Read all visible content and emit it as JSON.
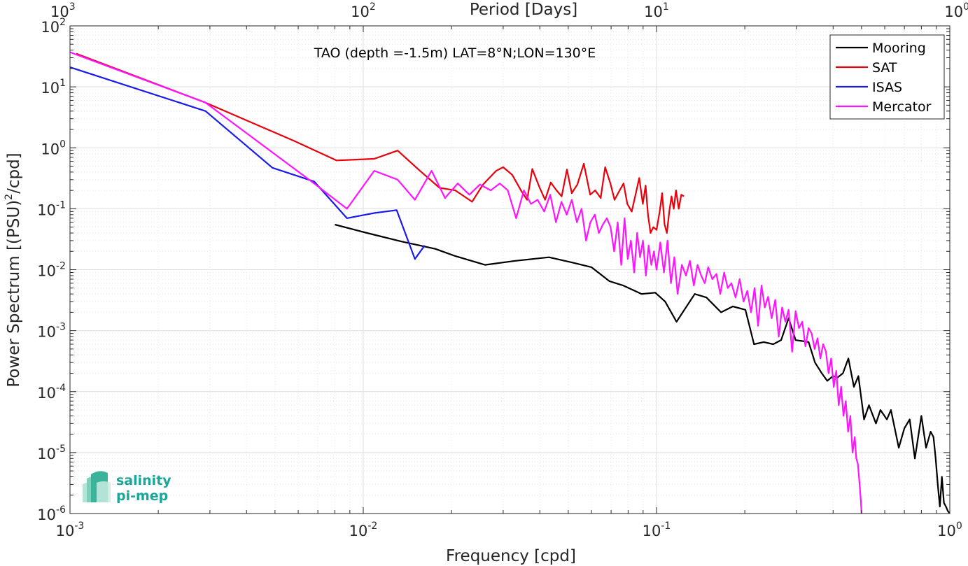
{
  "chart_data": {
    "type": "line",
    "title": "TAO (depth =-1.5m) LAT=8°N;LON=130°E",
    "xlabel": "Frequency [cpd]",
    "ylabel_parts": [
      "Power Spectrum [(PSU)",
      "2",
      "/cpd]"
    ],
    "top_xlabel": "Period [Days]",
    "xscale": "log",
    "yscale": "log",
    "xlim": [
      0.001,
      1
    ],
    "ylim": [
      1e-06,
      100
    ],
    "grid": true,
    "legend_position": "top-right",
    "x_ticks": [
      {
        "value": 0.001,
        "base": "10",
        "exp": "-3"
      },
      {
        "value": 0.01,
        "base": "10",
        "exp": "-2"
      },
      {
        "value": 0.1,
        "base": "10",
        "exp": "-1"
      },
      {
        "value": 1,
        "base": "10",
        "exp": "0"
      }
    ],
    "y_ticks": [
      {
        "value": 1e-06,
        "base": "10",
        "exp": "-6"
      },
      {
        "value": 1e-05,
        "base": "10",
        "exp": "-5"
      },
      {
        "value": 0.0001,
        "base": "10",
        "exp": "-4"
      },
      {
        "value": 0.001,
        "base": "10",
        "exp": "-3"
      },
      {
        "value": 0.01,
        "base": "10",
        "exp": "-2"
      },
      {
        "value": 0.1,
        "base": "10",
        "exp": "-1"
      },
      {
        "value": 1,
        "base": "10",
        "exp": "0"
      },
      {
        "value": 10,
        "base": "10",
        "exp": "1"
      },
      {
        "value": 100,
        "base": "10",
        "exp": "2"
      }
    ],
    "top_ticks": [
      {
        "period": 1000,
        "base": "10",
        "exp": "3"
      },
      {
        "period": 100,
        "base": "10",
        "exp": "2"
      },
      {
        "period": 10,
        "base": "10",
        "exp": "1"
      },
      {
        "period": 1,
        "base": "10",
        "exp": "0"
      }
    ],
    "series": [
      {
        "name": "Mooring",
        "color": "#000000",
        "x": [
          0.008,
          0.0103,
          0.0135,
          0.0176,
          0.0204,
          0.026,
          0.033,
          0.043,
          0.052,
          0.06,
          0.069,
          0.077,
          0.089,
          0.099,
          0.107,
          0.117,
          0.135,
          0.148,
          0.166,
          0.182,
          0.201,
          0.215,
          0.232,
          0.25,
          0.266,
          0.282,
          0.298,
          0.33,
          0.347,
          0.366,
          0.382,
          0.4,
          0.414,
          0.432,
          0.451,
          0.471,
          0.488,
          0.51,
          0.53,
          0.56,
          0.58,
          0.61,
          0.63,
          0.67,
          0.7,
          0.73,
          0.76,
          0.8,
          0.83,
          0.86,
          0.88,
          0.895,
          0.91,
          0.925,
          0.94,
          0.955,
          0.97,
          0.985,
          1.0
        ],
        "y": [
          0.055,
          0.04,
          0.029,
          0.022,
          0.017,
          0.012,
          0.014,
          0.016,
          0.013,
          0.011,
          0.0065,
          0.0055,
          0.004,
          0.0042,
          0.003,
          0.0014,
          0.004,
          0.0035,
          0.002,
          0.0025,
          0.0022,
          0.0006,
          0.00065,
          0.0006,
          0.0007,
          0.0016,
          0.0007,
          0.00065,
          0.0003,
          0.0002,
          0.00015,
          0.00018,
          0.00017,
          0.0002,
          0.00035,
          0.00012,
          0.00018,
          3.5e-05,
          6e-05,
          3e-05,
          5e-05,
          3.5e-05,
          5e-05,
          1.2e-05,
          2.5e-05,
          3.5e-05,
          8e-06,
          4e-05,
          1.2e-05,
          2.2e-05,
          1.8e-05,
          8e-06,
          3e-06,
          1.3e-06,
          4e-06,
          1.5e-06,
          1.3e-06,
          1.1e-06,
          1e-06
        ]
      },
      {
        "name": "SAT",
        "color": "#e8000b",
        "x": [
          0.00105,
          0.0029,
          0.0058,
          0.0081,
          0.0109,
          0.0131,
          0.0156,
          0.0182,
          0.0206,
          0.0235,
          0.0256,
          0.0284,
          0.03,
          0.0322,
          0.0345,
          0.0362,
          0.0377,
          0.0398,
          0.0417,
          0.0436,
          0.0456,
          0.0475,
          0.0495,
          0.0514,
          0.0537,
          0.0565,
          0.0594,
          0.0618,
          0.0645,
          0.0668,
          0.0696,
          0.0719,
          0.0744,
          0.0772,
          0.0795,
          0.0823,
          0.0848,
          0.0873,
          0.0898,
          0.0918,
          0.0935,
          0.0954,
          0.0975,
          0.1,
          0.1025,
          0.1045,
          0.1065,
          0.1085,
          0.1105,
          0.1125,
          0.1145,
          0.1165,
          0.119,
          0.1215,
          0.124
        ],
        "y": [
          35,
          5.5,
          1.3,
          0.62,
          0.66,
          0.9,
          0.42,
          0.22,
          0.2,
          0.13,
          0.25,
          0.42,
          0.48,
          0.36,
          0.2,
          0.14,
          0.45,
          0.23,
          0.14,
          0.27,
          0.2,
          0.16,
          0.44,
          0.18,
          0.25,
          0.55,
          0.17,
          0.2,
          0.15,
          0.48,
          0.26,
          0.14,
          0.19,
          0.26,
          0.12,
          0.09,
          0.17,
          0.32,
          0.12,
          0.24,
          0.08,
          0.04,
          0.05,
          0.045,
          0.09,
          0.18,
          0.055,
          0.04,
          0.09,
          0.16,
          0.1,
          0.2,
          0.1,
          0.17,
          0.16
        ]
      },
      {
        "name": "ISAS",
        "color": "#1a1aee",
        "x": [
          0.001,
          0.0029,
          0.0049,
          0.0068,
          0.0088,
          0.0109,
          0.013,
          0.015,
          0.0162
        ],
        "y": [
          21,
          4,
          0.47,
          0.28,
          0.07,
          0.085,
          0.095,
          0.015,
          0.025
        ]
      },
      {
        "name": "Mercator",
        "color": "#ff14ff",
        "x": [
          0.001,
          0.0029,
          0.0068,
          0.0088,
          0.0109,
          0.0131,
          0.015,
          0.0171,
          0.019,
          0.021,
          0.023,
          0.025,
          0.0272,
          0.0292,
          0.0311,
          0.0332,
          0.0353,
          0.0373,
          0.0393,
          0.0414,
          0.0434,
          0.0454,
          0.0474,
          0.0494,
          0.0514,
          0.0535,
          0.0555,
          0.0575,
          0.0595,
          0.0616,
          0.0636,
          0.0656,
          0.0677,
          0.0697,
          0.0717,
          0.0737,
          0.0758,
          0.0778,
          0.0798,
          0.0818,
          0.0839,
          0.0859,
          0.0879,
          0.0899,
          0.092,
          0.094,
          0.096,
          0.098,
          0.1,
          0.103,
          0.106,
          0.109,
          0.112,
          0.115,
          0.118,
          0.122,
          0.126,
          0.13,
          0.134,
          0.138,
          0.142,
          0.146,
          0.15,
          0.155,
          0.16,
          0.165,
          0.17,
          0.175,
          0.18,
          0.186,
          0.192,
          0.198,
          0.204,
          0.21,
          0.216,
          0.222,
          0.228,
          0.234,
          0.24,
          0.247,
          0.254,
          0.261,
          0.268,
          0.275,
          0.282,
          0.29,
          0.298,
          0.306,
          0.314,
          0.322,
          0.33,
          0.338,
          0.346,
          0.354,
          0.362,
          0.37,
          0.378,
          0.386,
          0.394,
          0.402,
          0.41,
          0.418,
          0.426,
          0.434,
          0.442,
          0.45,
          0.458,
          0.466,
          0.474,
          0.48,
          0.486,
          0.49,
          0.494,
          0.498,
          0.5
        ],
        "y": [
          37,
          5.5,
          0.26,
          0.1,
          0.42,
          0.3,
          0.14,
          0.42,
          0.15,
          0.26,
          0.17,
          0.25,
          0.2,
          0.26,
          0.2,
          0.07,
          0.2,
          0.12,
          0.14,
          0.09,
          0.17,
          0.06,
          0.13,
          0.08,
          0.14,
          0.06,
          0.1,
          0.03,
          0.06,
          0.08,
          0.04,
          0.055,
          0.07,
          0.05,
          0.02,
          0.06,
          0.012,
          0.07,
          0.015,
          0.03,
          0.009,
          0.04,
          0.016,
          0.03,
          0.008,
          0.025,
          0.012,
          0.02,
          0.01,
          0.028,
          0.009,
          0.03,
          0.006,
          0.016,
          0.004,
          0.012,
          0.008,
          0.014,
          0.0055,
          0.012,
          0.008,
          0.006,
          0.011,
          0.007,
          0.0085,
          0.004,
          0.009,
          0.005,
          0.006,
          0.0035,
          0.007,
          0.003,
          0.0045,
          0.002,
          0.005,
          0.0012,
          0.0055,
          0.0024,
          0.0036,
          0.0016,
          0.0032,
          0.0008,
          0.0024,
          0.0014,
          0.0022,
          0.00045,
          0.0021,
          0.0011,
          0.0014,
          0.00055,
          0.0011,
          0.0009,
          0.0005,
          0.00075,
          0.00035,
          0.0006,
          0.00045,
          0.0002,
          0.00035,
          0.00012,
          0.00022,
          6e-05,
          0.00012,
          4e-05,
          7e-05,
          2.2e-05,
          4e-05,
          1e-05,
          1.8e-05,
          8e-06,
          6.5e-06,
          4e-06,
          2.5e-06,
          1.5e-06,
          1e-06
        ]
      }
    ]
  },
  "logo": {
    "line1": "salinity",
    "line2": "pi-mep"
  }
}
